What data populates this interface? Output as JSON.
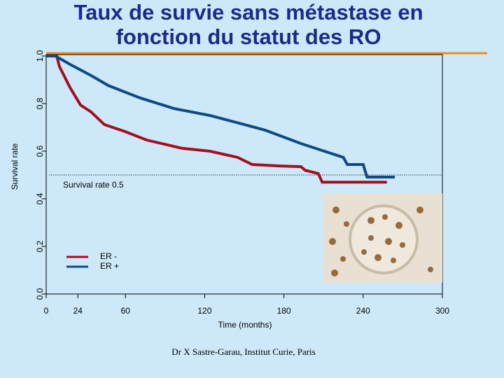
{
  "chart_data": {
    "type": "line",
    "title": [
      "Taux de survie sans métastase en",
      "fonction du statut des RO"
    ],
    "x_label": "Time (months)",
    "y_label": "Survival rate",
    "xlim": [
      0,
      300
    ],
    "ylim": [
      0,
      1
    ],
    "xticks": [
      0,
      24,
      60,
      120,
      180,
      240,
      300
    ],
    "yticks": [
      {
        "value": 0,
        "label": "0.0"
      },
      {
        "value": 0.2,
        "label": "0.2"
      },
      {
        "value": 0.4,
        "label": "0.4"
      },
      {
        "value": 0.6,
        "label": "0.6"
      },
      {
        "value": 0.8,
        "label": "0.8"
      },
      {
        "value": 1,
        "label": "1.0"
      }
    ],
    "reference_line": 0.5,
    "annotation": "Survival rate 0.5",
    "series": [
      {
        "name": "ER -",
        "color": "#a3101e",
        "x": [
          0,
          8,
          10,
          18,
          26,
          34,
          44,
          60,
          76,
          103,
          124,
          145,
          156,
          177,
          193,
          196,
          206,
          209,
          258
        ],
        "values": [
          1,
          1,
          0.956,
          0.868,
          0.794,
          0.765,
          0.712,
          0.682,
          0.647,
          0.612,
          0.6,
          0.574,
          0.544,
          0.538,
          0.535,
          0.52,
          0.506,
          0.47,
          0.47
        ]
      },
      {
        "name": "ER +",
        "color": "#0f4a82",
        "x": [
          0,
          7,
          18,
          34,
          47,
          71,
          97,
          124,
          150,
          166,
          193,
          209,
          225,
          228,
          240,
          243,
          264
        ],
        "values": [
          1,
          1,
          0.965,
          0.918,
          0.876,
          0.824,
          0.779,
          0.75,
          0.712,
          0.688,
          0.632,
          0.603,
          0.574,
          0.544,
          0.544,
          0.491,
          0.491
        ]
      }
    ],
    "source": "Dr X Sastre-Garau, Institut Curie, Paris"
  }
}
